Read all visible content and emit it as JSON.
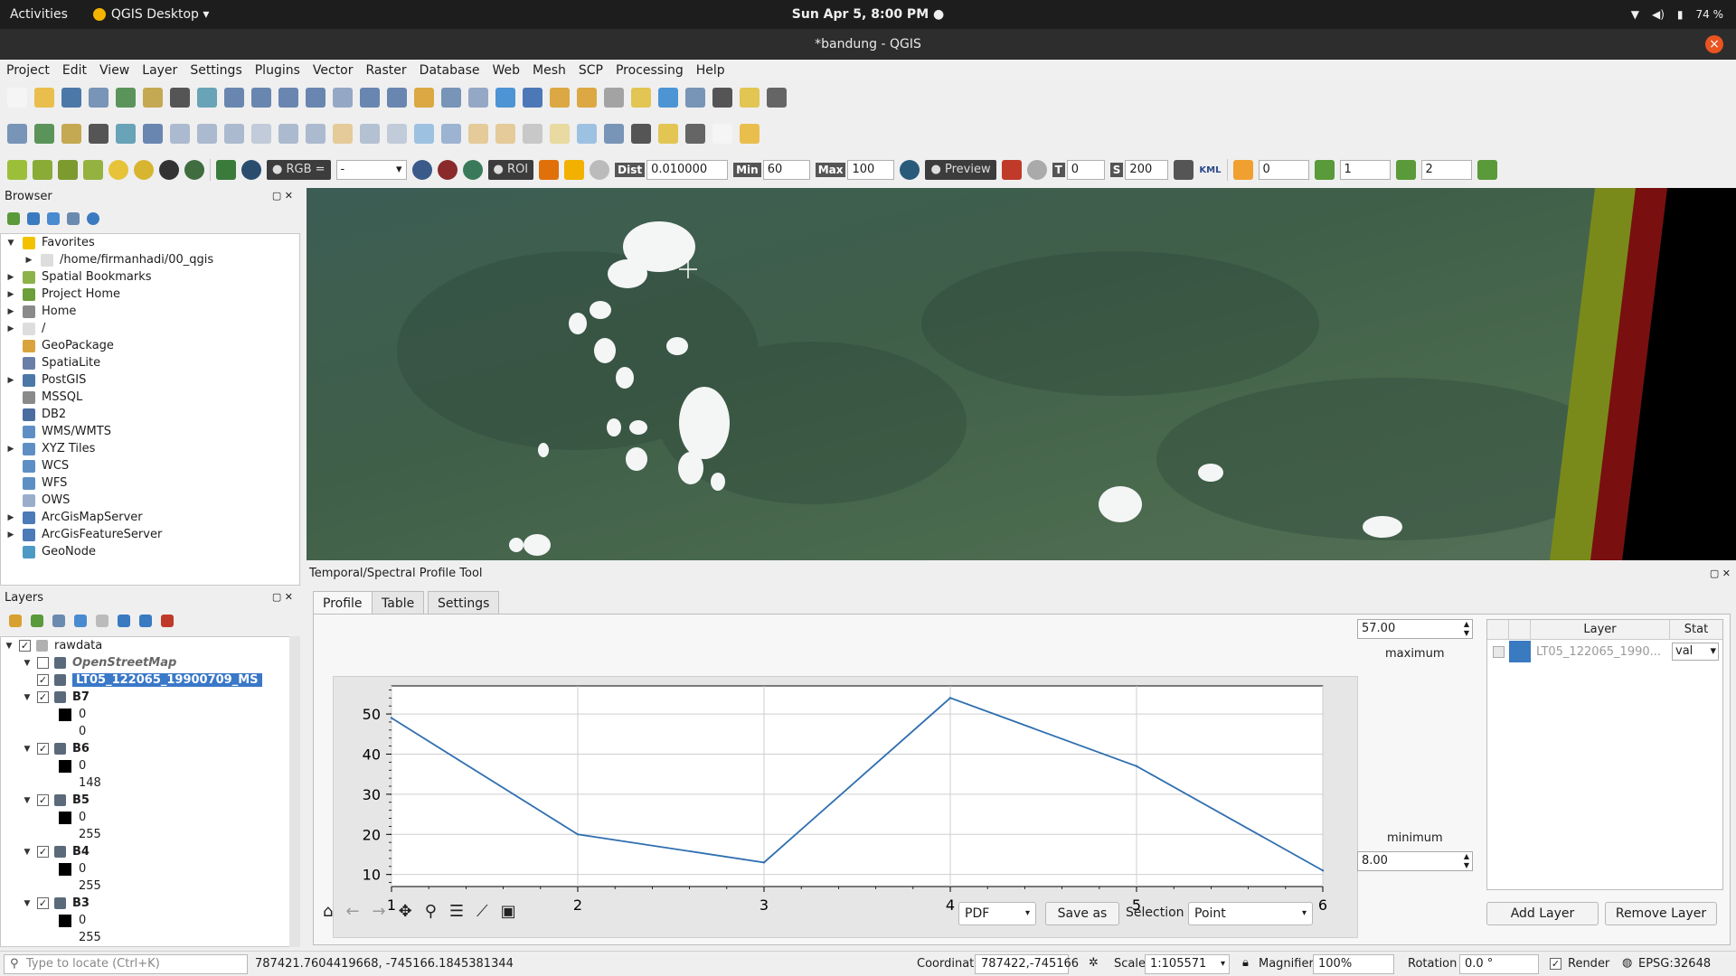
{
  "topbar": {
    "activities": "Activities",
    "app_name": "QGIS Desktop ▾",
    "clock": "Sun Apr  5,  8:00 PM ●",
    "battery": "74 %"
  },
  "window": {
    "title": "*bandung - QGIS"
  },
  "menu": [
    "Project",
    "Edit",
    "View",
    "Layer",
    "Settings",
    "Plugins",
    "Vector",
    "Raster",
    "Database",
    "Web",
    "Mesh",
    "SCP",
    "Processing",
    "Help"
  ],
  "scp_toolbar": {
    "rgb_label": "RGB =",
    "rgb_value": "-",
    "roi_label": "ROI",
    "dist_label": "Dist",
    "dist_value": "0.010000",
    "min_label": "Min",
    "min_value": "60",
    "max_label": "Max",
    "max_value": "100",
    "preview_label": "Preview",
    "t_label": "T",
    "t_value": "0",
    "s_label": "S",
    "s_value": "200",
    "kml_label": "KML",
    "field1": "0",
    "field2": "1",
    "field3": "2"
  },
  "browser": {
    "title": "Browser",
    "items": [
      {
        "label": "Favorites",
        "expand": "▼",
        "color": "#f2c200",
        "indent": 0
      },
      {
        "label": "/home/firmanhadi/00_qgis",
        "expand": "▶",
        "color": "#dddddd",
        "indent": 1
      },
      {
        "label": "Spatial Bookmarks",
        "expand": "▶",
        "color": "#8cb34a",
        "indent": 0
      },
      {
        "label": "Project Home",
        "expand": "▶",
        "color": "#6c9e3a",
        "indent": 0
      },
      {
        "label": "Home",
        "expand": "▶",
        "color": "#8a8a8a",
        "indent": 0
      },
      {
        "label": "/",
        "expand": "▶",
        "color": "#dddddd",
        "indent": 0
      },
      {
        "label": "GeoPackage",
        "expand": "",
        "color": "#d9a43b",
        "indent": 0
      },
      {
        "label": "SpatiaLite",
        "expand": "",
        "color": "#6a7fa8",
        "indent": 0
      },
      {
        "label": "PostGIS",
        "expand": "▶",
        "color": "#4a79a8",
        "indent": 0
      },
      {
        "label": "MSSQL",
        "expand": "",
        "color": "#8a8a8a",
        "indent": 0
      },
      {
        "label": "DB2",
        "expand": "",
        "color": "#4c6da0",
        "indent": 0
      },
      {
        "label": "WMS/WMTS",
        "expand": "",
        "color": "#5e8fc4",
        "indent": 0
      },
      {
        "label": "XYZ Tiles",
        "expand": "▶",
        "color": "#5e8fc4",
        "indent": 0
      },
      {
        "label": "WCS",
        "expand": "",
        "color": "#5e8fc4",
        "indent": 0
      },
      {
        "label": "WFS",
        "expand": "",
        "color": "#5e8fc4",
        "indent": 0
      },
      {
        "label": "OWS",
        "expand": "",
        "color": "#9aaecc",
        "indent": 0
      },
      {
        "label": "ArcGisMapServer",
        "expand": "▶",
        "color": "#4c7bb8",
        "indent": 0
      },
      {
        "label": "ArcGisFeatureServer",
        "expand": "▶",
        "color": "#4c7bb8",
        "indent": 0
      },
      {
        "label": "GeoNode",
        "expand": "",
        "color": "#4c9bc4",
        "indent": 0
      }
    ]
  },
  "layers": {
    "title": "Layers",
    "items": [
      {
        "label": "rawdata",
        "type": "group",
        "checked": true,
        "indent": 0,
        "expand": "▼"
      },
      {
        "label": "OpenStreetMap",
        "type": "layer-italic",
        "checked": false,
        "indent": 1,
        "expand": "▼"
      },
      {
        "label": "LT05_122065_19900709_MS",
        "type": "layer-selected",
        "checked": true,
        "indent": 1,
        "expand": ""
      },
      {
        "label": "B7",
        "type": "layer",
        "checked": true,
        "indent": 1,
        "expand": "▼"
      },
      {
        "label": "0",
        "type": "legend-swatch",
        "indent": 2
      },
      {
        "label": "0",
        "type": "legend-text",
        "indent": 2
      },
      {
        "label": "B6",
        "type": "layer",
        "checked": true,
        "indent": 1,
        "expand": "▼"
      },
      {
        "label": "0",
        "type": "legend-swatch",
        "indent": 2
      },
      {
        "label": "148",
        "type": "legend-text",
        "indent": 2
      },
      {
        "label": "B5",
        "type": "layer",
        "checked": true,
        "indent": 1,
        "expand": "▼"
      },
      {
        "label": "0",
        "type": "legend-swatch",
        "indent": 2
      },
      {
        "label": "255",
        "type": "legend-text",
        "indent": 2
      },
      {
        "label": "B4",
        "type": "layer",
        "checked": true,
        "indent": 1,
        "expand": "▼"
      },
      {
        "label": "0",
        "type": "legend-swatch",
        "indent": 2
      },
      {
        "label": "255",
        "type": "legend-text",
        "indent": 2
      },
      {
        "label": "B3",
        "type": "layer",
        "checked": true,
        "indent": 1,
        "expand": "▼"
      },
      {
        "label": "0",
        "type": "legend-swatch",
        "indent": 2
      },
      {
        "label": "255",
        "type": "legend-text",
        "indent": 2
      }
    ]
  },
  "profile": {
    "title": "Temporal/Spectral Profile Tool",
    "tabs": [
      "Profile",
      "Table",
      "Settings"
    ],
    "max_value": "57.00",
    "max_label": "maximum",
    "min_label": "minimum",
    "min_value": "8.00",
    "table_header": {
      "layer": "Layer",
      "stat": "Stat"
    },
    "table_row": {
      "layer": "LT05_122065_1990...",
      "stat": "val"
    },
    "format": "PDF",
    "save_as": "Save as",
    "selection_label": "Selection",
    "selection_value": "Point",
    "add_layer": "Add Layer",
    "remove_layer": "Remove Layer"
  },
  "chart_data": {
    "type": "line",
    "x": [
      1,
      2,
      3,
      4,
      5,
      6
    ],
    "series": [
      {
        "values": [
          49,
          20,
          13,
          54,
          37,
          11
        ]
      }
    ],
    "xlim": [
      1,
      6
    ],
    "ylim": [
      7,
      57
    ],
    "xticks": [
      1,
      2,
      3,
      4,
      5,
      6
    ],
    "yticks": [
      10,
      20,
      30,
      40,
      50
    ],
    "grid": true,
    "color": "#2f6fb0"
  },
  "statusbar": {
    "locate_placeholder": "Type to locate (Ctrl+K)",
    "cursor_coords": "787421.7604419668, -745166.1845381344",
    "coordinate_label": "Coordinate",
    "coordinate_value": "787422,-745166",
    "scale_label": "Scale",
    "scale_value": "1:105571",
    "magnifier_label": "Magnifier",
    "magnifier_value": "100%",
    "rotation_label": "Rotation",
    "rotation_value": "0.0 °",
    "render_label": "Render",
    "crs": "EPSG:32648"
  }
}
